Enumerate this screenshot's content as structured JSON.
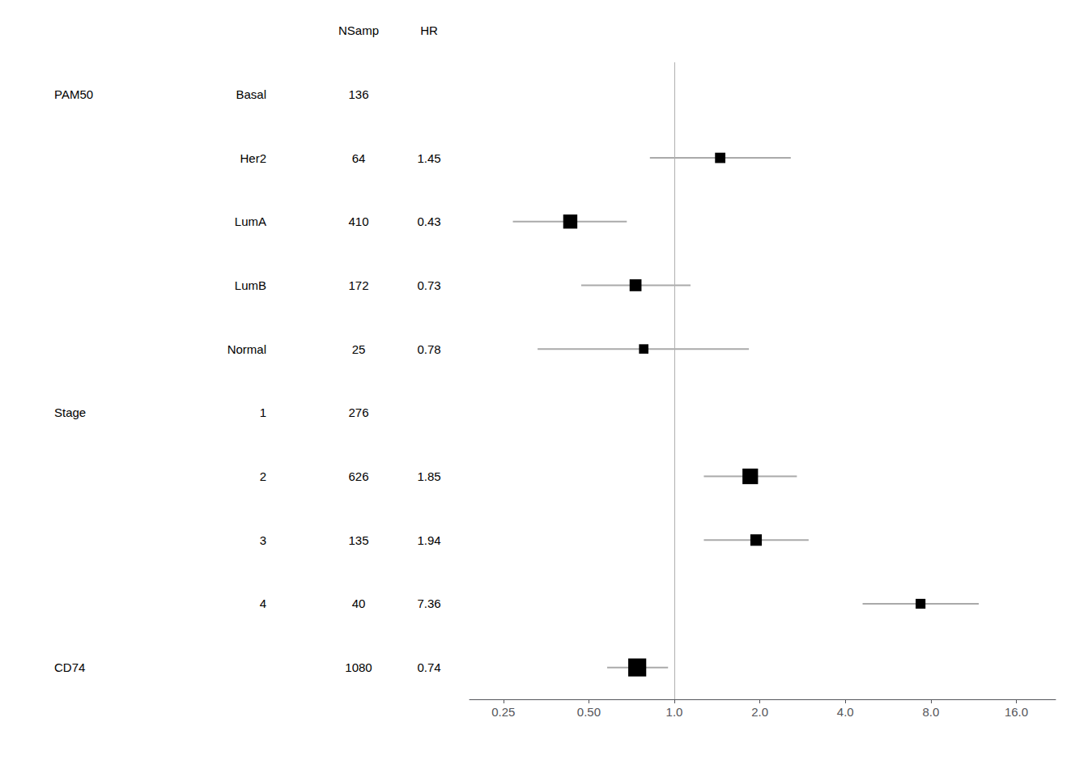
{
  "chart_data": {
    "type": "forest",
    "log": "x",
    "xlim": [
      0.19,
      22.0
    ],
    "xticks": [
      0.25,
      {
        "value": 0.5,
        "label": "0.50"
      },
      {
        "value": 1.0,
        "label": "1.0"
      },
      {
        "value": 2.0,
        "label": "2.0"
      },
      {
        "value": 4.0,
        "label": "4.0"
      },
      {
        "value": 8.0,
        "label": "8.0"
      },
      {
        "value": 16.0,
        "label": "16.0"
      }
    ],
    "ref_line": 1.0,
    "headers": [
      "NSamp",
      "HR"
    ],
    "groups": [
      "PAM50",
      null,
      null,
      null,
      null,
      "Stage",
      null,
      null,
      null,
      "CD74"
    ],
    "categories": [
      "Basal",
      "Her2",
      "LumA",
      "LumB",
      "Normal",
      "1",
      "2",
      "3",
      "4",
      null
    ],
    "nsamp": [
      136,
      64,
      410,
      172,
      25,
      276,
      626,
      135,
      40,
      1080
    ],
    "values": [
      null,
      1.45,
      0.43,
      0.73,
      0.78,
      null,
      1.85,
      1.94,
      7.36,
      0.74
    ],
    "ci_lo": [
      null,
      0.82,
      0.27,
      0.47,
      0.33,
      null,
      1.27,
      1.27,
      4.6,
      0.58
    ],
    "ci_hi": [
      null,
      2.57,
      0.68,
      1.14,
      1.83,
      null,
      2.7,
      2.97,
      11.8,
      0.95
    ],
    "data_labels": true,
    "grid": false,
    "color": "#000000"
  }
}
